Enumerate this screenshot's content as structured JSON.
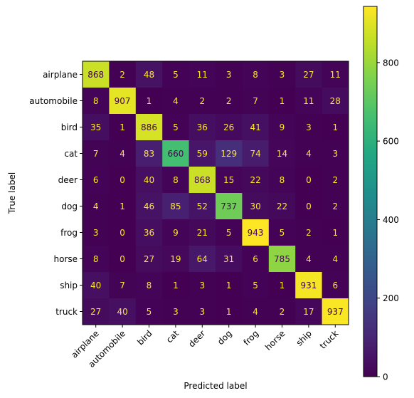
{
  "chart_data": {
    "type": "heatmap",
    "xlabel": "Predicted label",
    "ylabel": "True label",
    "categories": [
      "airplane",
      "automobile",
      "bird",
      "cat",
      "deer",
      "dog",
      "frog",
      "horse",
      "ship",
      "truck"
    ],
    "matrix": [
      [
        868,
        2,
        48,
        5,
        11,
        3,
        8,
        3,
        27,
        11
      ],
      [
        8,
        907,
        1,
        4,
        2,
        2,
        7,
        1,
        11,
        28
      ],
      [
        35,
        1,
        886,
        5,
        36,
        26,
        41,
        9,
        3,
        1
      ],
      [
        7,
        4,
        83,
        660,
        59,
        129,
        74,
        14,
        4,
        3
      ],
      [
        6,
        0,
        40,
        8,
        868,
        15,
        22,
        8,
        0,
        2
      ],
      [
        4,
        1,
        46,
        85,
        52,
        737,
        30,
        22,
        0,
        2
      ],
      [
        3,
        0,
        36,
        9,
        21,
        5,
        943,
        5,
        2,
        1
      ],
      [
        8,
        0,
        27,
        19,
        64,
        31,
        6,
        785,
        4,
        4
      ],
      [
        40,
        7,
        8,
        1,
        3,
        1,
        5,
        1,
        931,
        6
      ],
      [
        27,
        40,
        5,
        3,
        3,
        1,
        4,
        2,
        17,
        937
      ]
    ],
    "colormap": "viridis",
    "vmin": 0,
    "vmax": 943,
    "colorbar_ticks": [
      0,
      200,
      400,
      600,
      800
    ],
    "text_color_low": "#fde725",
    "text_color_high": "#440154",
    "grid": false
  }
}
